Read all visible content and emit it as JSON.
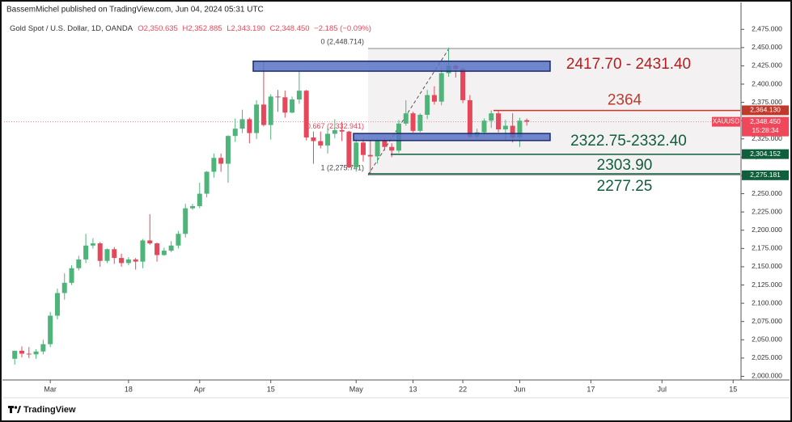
{
  "header": {
    "publisher": "BassemMichel published on TradingView.com, Jun 04, 2024 05:31 UTC"
  },
  "chart_data": {
    "type": "candlestick",
    "symbol": "Gold Spot / U.S. Dollar, 1D, OANDA",
    "ohlc_labels": [
      "O2,350.635",
      "H2,352.885",
      "L2,343.190",
      "C2,348.450"
    ],
    "change_label": "−2.185 (−0.09%)",
    "up_color": "#4fb47a",
    "down_color": "#e5485a",
    "open": [
      2024,
      2035,
      2031,
      2030,
      2034,
      2044,
      2083,
      2114,
      2128,
      2148,
      2160,
      2179,
      2182,
      2158,
      2174,
      2162,
      2155,
      2160,
      2157,
      2186,
      2182,
      2166,
      2172,
      2179,
      2195,
      2230,
      2233,
      2250,
      2280,
      2299,
      2291,
      2329,
      2339,
      2352,
      2333,
      2372,
      2344,
      2383,
      2382,
      2361,
      2379,
      2391,
      2327,
      2322,
      2316,
      2332,
      2337,
      2335,
      2286,
      2320,
      2303,
      2301,
      2323,
      2314,
      2309,
      2346,
      2360,
      2336,
      2358,
      2385,
      2376,
      2415,
      2425,
      2421,
      2378,
      2328,
      2334,
      2350,
      2360,
      2338,
      2343,
      2327,
      2350.635
    ],
    "high": [
      2035,
      2041,
      2040,
      2037,
      2050,
      2088,
      2120,
      2141,
      2152,
      2165,
      2195,
      2189,
      2184,
      2175,
      2177,
      2168,
      2163,
      2162,
      2188,
      2222,
      2183,
      2176,
      2185,
      2199,
      2236,
      2236,
      2265,
      2281,
      2305,
      2305,
      2330,
      2353,
      2365,
      2354,
      2378,
      2431,
      2386,
      2392,
      2391,
      2383,
      2417,
      2392,
      2335,
      2335,
      2340,
      2352,
      2348,
      2336,
      2326,
      2326,
      2324,
      2326,
      2326,
      2319,
      2351,
      2378,
      2362,
      2360,
      2392,
      2397,
      2422,
      2450,
      2427,
      2423,
      2385,
      2339,
      2353,
      2364,
      2363,
      2351,
      2360,
      2354,
      2352.885
    ],
    "low": [
      2016,
      2026,
      2025,
      2024,
      2030,
      2040,
      2078,
      2105,
      2125,
      2145,
      2155,
      2175,
      2150,
      2155,
      2154,
      2150,
      2152,
      2146,
      2148,
      2180,
      2157,
      2165,
      2170,
      2175,
      2190,
      2228,
      2230,
      2245,
      2272,
      2280,
      2265,
      2321,
      2333,
      2319,
      2325,
      2342,
      2324,
      2362,
      2354,
      2360,
      2373,
      2323,
      2291,
      2312,
      2305,
      2326,
      2322,
      2285,
      2280,
      2294,
      2277,
      2291,
      2309,
      2300,
      2306,
      2343,
      2334,
      2334,
      2352,
      2372,
      2371,
      2410,
      2409,
      2374,
      2326,
      2325,
      2331,
      2340,
      2334,
      2322,
      2320,
      2314,
      2343.19
    ],
    "close": [
      2035,
      2031,
      2030,
      2034,
      2044,
      2083,
      2114,
      2128,
      2148,
      2160,
      2179,
      2182,
      2158,
      2174,
      2162,
      2155,
      2160,
      2157,
      2186,
      2182,
      2166,
      2172,
      2179,
      2195,
      2230,
      2233,
      2250,
      2280,
      2299,
      2291,
      2329,
      2339,
      2352,
      2333,
      2372,
      2344,
      2383,
      2382,
      2361,
      2379,
      2391,
      2327,
      2322,
      2316,
      2332,
      2337,
      2335,
      2286,
      2320,
      2303,
      2301,
      2323,
      2314,
      2309,
      2346,
      2360,
      2336,
      2358,
      2385,
      2376,
      2415,
      2425,
      2421,
      2378,
      2328,
      2334,
      2350,
      2360,
      2338,
      2343,
      2327,
      2350,
      2348.45
    ],
    "xlim": [
      -1.5,
      102
    ],
    "xticks": [
      {
        "value": 5,
        "label": "Mar"
      },
      {
        "value": 16,
        "label": "18"
      },
      {
        "value": 26,
        "label": "Apr"
      },
      {
        "value": 36,
        "label": "15"
      },
      {
        "value": 48,
        "label": "May"
      },
      {
        "value": 56,
        "label": "13"
      },
      {
        "value": 63,
        "label": "22"
      },
      {
        "value": 71,
        "label": "Jun"
      },
      {
        "value": 81,
        "label": "17"
      },
      {
        "value": 91,
        "label": "Jul"
      },
      {
        "value": 101,
        "label": "15"
      }
    ],
    "ylim": [
      1995,
      2493
    ],
    "yticks": [
      {
        "value": 2000,
        "label": "2,000.000"
      },
      {
        "value": 2025,
        "label": "2,025.000"
      },
      {
        "value": 2050,
        "label": "2,050.000"
      },
      {
        "value": 2075,
        "label": "2,075.000"
      },
      {
        "value": 2100,
        "label": "2,100.000"
      },
      {
        "value": 2125,
        "label": "2,125.000"
      },
      {
        "value": 2150,
        "label": "2,150.000"
      },
      {
        "value": 2175,
        "label": "2,175.000"
      },
      {
        "value": 2200,
        "label": "2,200.000"
      },
      {
        "value": 2225,
        "label": "2,225.000"
      },
      {
        "value": 2250,
        "label": "2,250.000"
      },
      {
        "value": 2275,
        "label": "2,275.000"
      },
      {
        "value": 2300,
        "label": "2,300.000"
      },
      {
        "value": 2325,
        "label": "2,325.000"
      },
      {
        "value": 2350,
        "label": "2,350.000"
      },
      {
        "value": 2375,
        "label": "2,375.000"
      },
      {
        "value": 2400,
        "label": "2,400.000"
      },
      {
        "value": 2425,
        "label": "2,425.000"
      },
      {
        "value": 2450,
        "label": "2,450.000"
      },
      {
        "value": 2475,
        "label": "2,475.000"
      }
    ],
    "grid": false,
    "last_price": 2348.45,
    "fib_levels": [
      {
        "value": 2448.714,
        "label": "0 (2,448.714)"
      },
      {
        "value": 2332.941,
        "label": "0.667 (2,332.941)"
      },
      {
        "value": 2275.741,
        "label": "1 (2,275.741)"
      }
    ],
    "zones": [
      {
        "low": 2417.7,
        "high": 2431.4,
        "label": "2417.70 - 2431.40",
        "color": "#b71c1c"
      },
      {
        "low": 2322.75,
        "high": 2332.4,
        "label": "2322.75-2332.40",
        "color": "#0f5e3c"
      }
    ],
    "levels": [
      {
        "value": 2364,
        "label": "2364",
        "color": "#c0392b"
      },
      {
        "value": 2303.9,
        "label": "2303.90",
        "color": "#0f5e3c"
      },
      {
        "value": 2277.25,
        "label": "2277.25",
        "color": "#0f5e3c"
      }
    ],
    "axis_tags": [
      {
        "value": 2364.13,
        "label": "2,364.130",
        "color": "#c0392b"
      },
      {
        "value": 2348.45,
        "label": "2,348.450",
        "color": "#f0475a"
      },
      {
        "value": 2304.152,
        "label": "2,304.152",
        "color": "#0f5e3c"
      },
      {
        "value": 2275.181,
        "label": "2,275.181",
        "color": "#0f5e3c"
      }
    ],
    "symbol_tag": "XAUUSD",
    "countdown": "15:28:34"
  },
  "footer": {
    "brand": "TradingView"
  }
}
